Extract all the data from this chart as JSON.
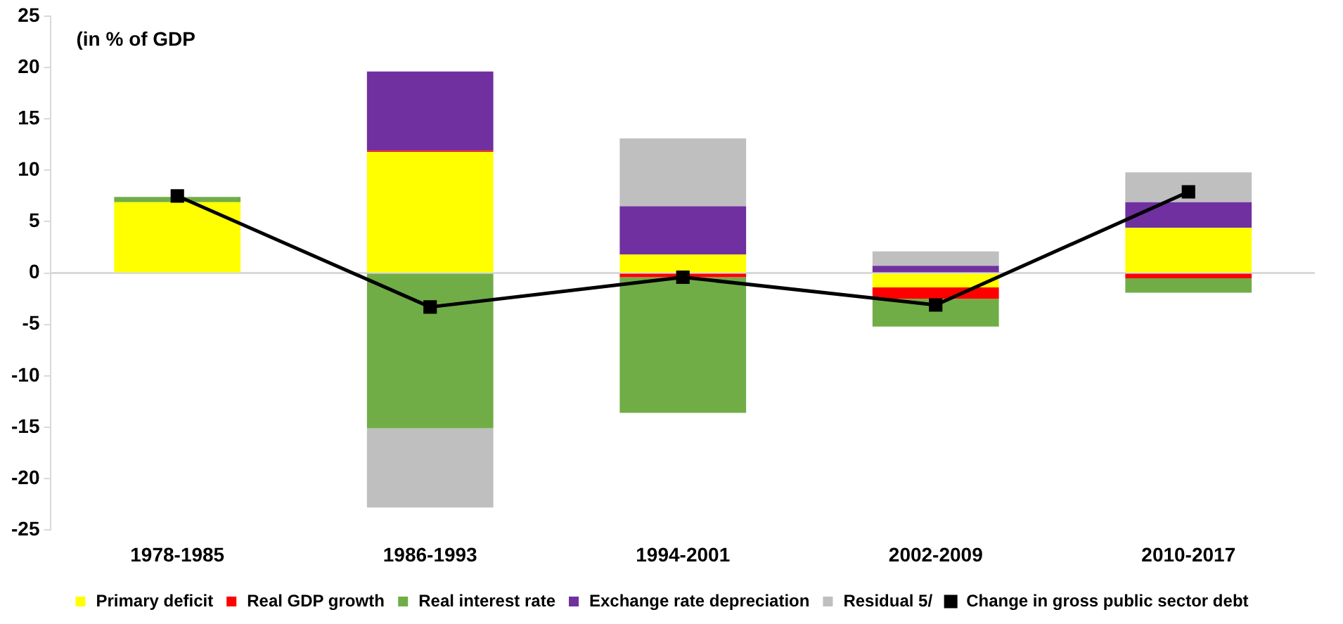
{
  "chart_data": {
    "type": "bar",
    "stacked": true,
    "categories": [
      "1978-1985",
      "1986-1993",
      "1994-2001",
      "2002-2009",
      "2010-2017"
    ],
    "series": [
      {
        "name": "Primary deficit",
        "color": "#ffff00",
        "values": [
          6.9,
          11.8,
          1.8,
          -1.4,
          4.4
        ]
      },
      {
        "name": "Real GDP growth",
        "color": "#ff0000",
        "values": [
          0,
          0.1,
          -0.4,
          -1.1,
          -0.5
        ]
      },
      {
        "name": "Real interest rate",
        "color": "#70ad47",
        "values": [
          0.5,
          -15.1,
          -13.2,
          -2.7,
          -1.4
        ]
      },
      {
        "name": "Exchange rate depreciation",
        "color": "#7030a0",
        "values": [
          0,
          7.7,
          4.7,
          0.7,
          2.5
        ]
      },
      {
        "name": "Residual 5/",
        "color": "#bfbfbf",
        "values": [
          0,
          -7.7,
          6.6,
          1.4,
          2.9
        ]
      },
      {
        "name": "Change in gross public sector debt",
        "type": "line",
        "color": "#000000",
        "marker": "square",
        "values": [
          7.5,
          -3.3,
          -0.4,
          -3.1,
          7.9
        ]
      }
    ],
    "ylim": [
      -25,
      25
    ],
    "yticks": [
      -25,
      -20,
      -15,
      -10,
      -5,
      0,
      5,
      10,
      15,
      20,
      25
    ],
    "grid": false,
    "legend": "bottom",
    "ref_lines": [
      {
        "axis": "y",
        "value": 0,
        "color": "#d9d9d9"
      }
    ],
    "annotations": [
      "(in % of GDP"
    ]
  }
}
